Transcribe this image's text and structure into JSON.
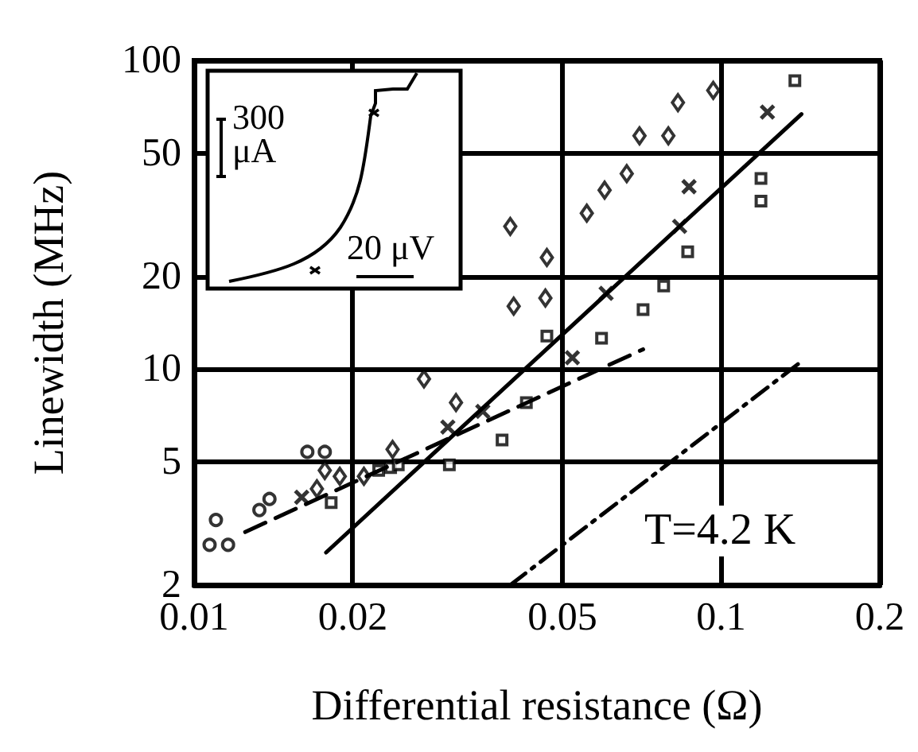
{
  "chart_data": {
    "type": "scatter",
    "xlabel": "Differential resistance (Ω)",
    "ylabel": "Linewidth (MHz)",
    "log": "xy",
    "grid": true,
    "xlim": [
      0.01,
      0.2
    ],
    "xticks": [
      0.01,
      0.02,
      0.05,
      0.1,
      0.2
    ],
    "ylim": [
      2,
      100
    ],
    "yticks": [
      2,
      5,
      10,
      20,
      50,
      100
    ],
    "annotations": [
      "T=4.2 K",
      "300 μA",
      "20 μV"
    ],
    "series": [
      {
        "color": "#000000",
        "marker": "circle",
        "x": [
          0.0107,
          0.0116,
          0.011,
          0.0133,
          0.0139,
          0.0164,
          0.0177
        ],
        "values": [
          2.7,
          2.7,
          3.25,
          3.5,
          3.8,
          5.4,
          5.4
        ]
      },
      {
        "color": "#000000",
        "marker": "diamond",
        "x": [
          0.0171,
          0.0177,
          0.0189,
          0.021,
          0.0238,
          0.0273,
          0.0314,
          0.0398,
          0.0467,
          0.0404,
          0.0464,
          0.0556,
          0.0601,
          0.0662,
          0.07,
          0.0794,
          0.0828,
          0.0966
        ],
        "values": [
          4.1,
          4.7,
          4.5,
          4.5,
          5.5,
          9.3,
          7.8,
          29,
          23,
          16,
          17,
          32,
          38,
          43,
          57,
          57,
          73,
          80
        ]
      },
      {
        "color": "#000000",
        "marker": "cross",
        "x": [
          0.016,
          0.0303,
          0.0353,
          0.0522,
          0.0605,
          0.0834,
          0.0869,
          0.1224
        ],
        "values": [
          3.85,
          6.5,
          7.3,
          10.9,
          17.6,
          29,
          39,
          68
        ]
      },
      {
        "color": "#000000",
        "marker": "square",
        "x": [
          0.0182,
          0.0224,
          0.0236,
          0.0244,
          0.0305,
          0.0384,
          0.0427,
          0.0467,
          0.0593,
          0.0711,
          0.0778,
          0.0864,
          0.119,
          0.119,
          0.138
        ],
        "values": [
          3.7,
          4.7,
          4.8,
          4.9,
          4.9,
          5.9,
          7.8,
          12.8,
          12.6,
          15.6,
          18.6,
          24,
          41.5,
          35,
          86
        ]
      },
      {
        "type": "line",
        "color": "#000000",
        "marker": "none",
        "line_style": "solid",
        "x": [
          0.0178,
          0.142
        ],
        "values": [
          2.55,
          67
        ]
      },
      {
        "type": "line",
        "color": "#000000",
        "marker": "none",
        "line_style": "dashed",
        "x": [
          0.0125,
          0.0711
        ],
        "values": [
          2.97,
          11.6
        ]
      },
      {
        "type": "line",
        "color": "#000000",
        "marker": "none",
        "line_style": "dotted",
        "x": [
          0.0398,
          0.14
        ],
        "values": [
          2.0,
          10.4
        ]
      }
    ]
  }
}
